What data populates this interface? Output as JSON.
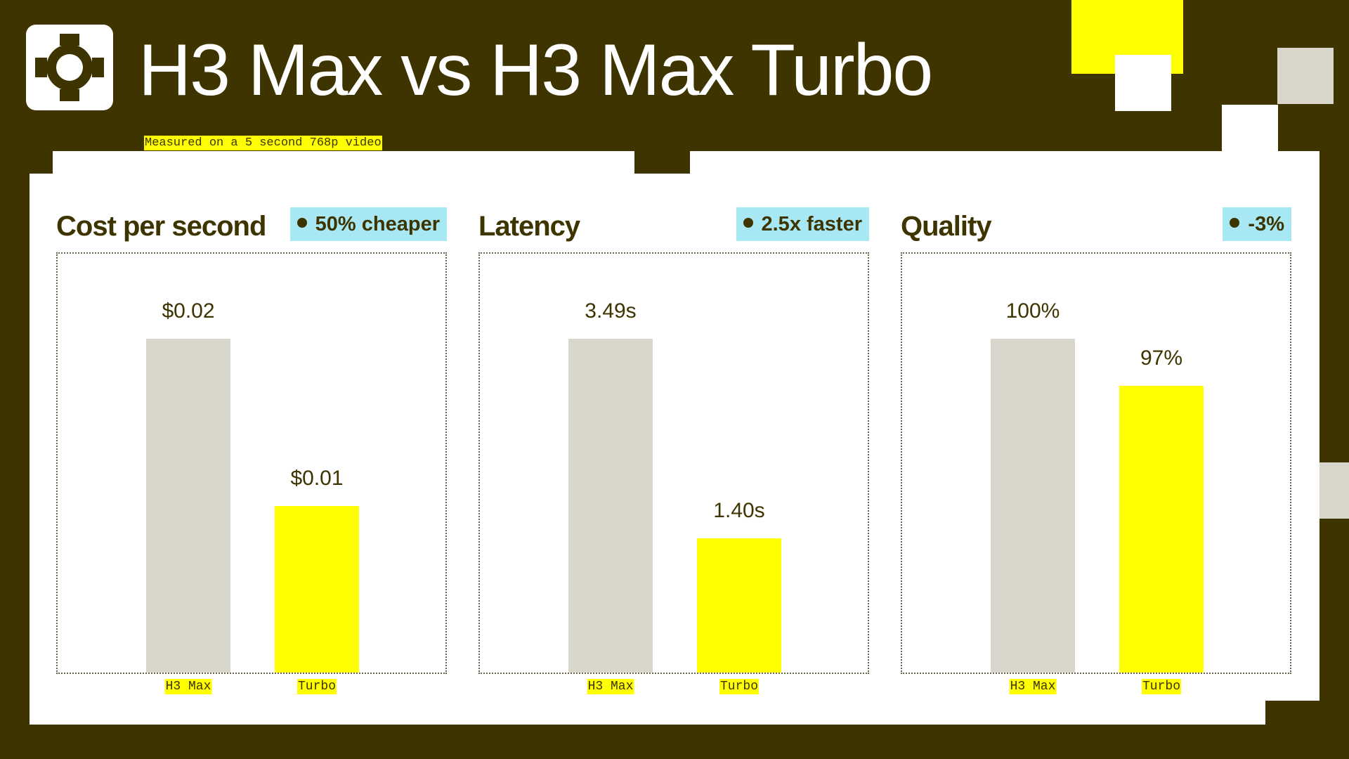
{
  "header": {
    "title": "H3 Max vs H3 Max Turbo",
    "subtitle": "Measured on a 5 second 768p video",
    "logo_icon": "gear-ring-icon"
  },
  "colors": {
    "background": "#3d3400",
    "card": "#ffffff",
    "accent_yellow": "#ffff00",
    "bar_grey": "#d9d6cc",
    "badge_cyan": "#a8e8f4",
    "text_dark": "#3d3400"
  },
  "chart_data": [
    {
      "type": "bar",
      "title": "Cost per second",
      "badge": "50% cheaper",
      "categories": [
        "H3 Max",
        "Turbo"
      ],
      "values": [
        0.02,
        0.01
      ],
      "value_labels": [
        "$0.02",
        "$0.01"
      ],
      "ylim": [
        0,
        0.02
      ],
      "grid": false
    },
    {
      "type": "bar",
      "title": "Latency",
      "badge": "2.5x faster",
      "categories": [
        "H3 Max",
        "Turbo"
      ],
      "values": [
        3.49,
        1.4
      ],
      "value_labels": [
        "3.49s",
        "1.40s"
      ],
      "ylim": [
        0,
        3.49
      ],
      "grid": false
    },
    {
      "type": "bar",
      "title": "Quality",
      "badge": "-3%",
      "categories": [
        "H3 Max",
        "Turbo"
      ],
      "values": [
        100,
        97
      ],
      "value_labels": [
        "100%",
        "97%"
      ],
      "ylim": [
        80,
        100
      ],
      "grid": false
    }
  ]
}
